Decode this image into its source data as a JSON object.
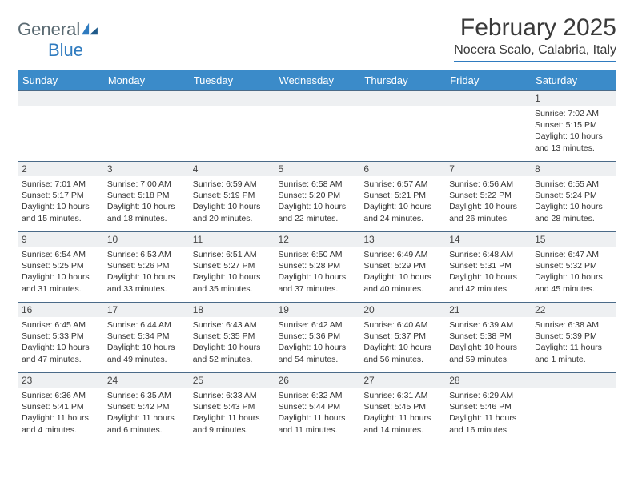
{
  "brand": {
    "part1": "General",
    "part2": "Blue"
  },
  "title": "February 2025",
  "location": "Nocera Scalo, Calabria, Italy",
  "colors": {
    "header_bg": "#3b8bc9",
    "header_text": "#ffffff",
    "rule": "#4a6a88",
    "daynum_bg": "#eef0f2",
    "brand_gray": "#5a6a72",
    "brand_blue": "#2f7bbf"
  },
  "weekdays": [
    "Sunday",
    "Monday",
    "Tuesday",
    "Wednesday",
    "Thursday",
    "Friday",
    "Saturday"
  ],
  "weeks": [
    [
      null,
      null,
      null,
      null,
      null,
      null,
      {
        "n": "1",
        "sr": "Sunrise: 7:02 AM",
        "ss": "Sunset: 5:15 PM",
        "dl": "Daylight: 10 hours and 13 minutes."
      }
    ],
    [
      {
        "n": "2",
        "sr": "Sunrise: 7:01 AM",
        "ss": "Sunset: 5:17 PM",
        "dl": "Daylight: 10 hours and 15 minutes."
      },
      {
        "n": "3",
        "sr": "Sunrise: 7:00 AM",
        "ss": "Sunset: 5:18 PM",
        "dl": "Daylight: 10 hours and 18 minutes."
      },
      {
        "n": "4",
        "sr": "Sunrise: 6:59 AM",
        "ss": "Sunset: 5:19 PM",
        "dl": "Daylight: 10 hours and 20 minutes."
      },
      {
        "n": "5",
        "sr": "Sunrise: 6:58 AM",
        "ss": "Sunset: 5:20 PM",
        "dl": "Daylight: 10 hours and 22 minutes."
      },
      {
        "n": "6",
        "sr": "Sunrise: 6:57 AM",
        "ss": "Sunset: 5:21 PM",
        "dl": "Daylight: 10 hours and 24 minutes."
      },
      {
        "n": "7",
        "sr": "Sunrise: 6:56 AM",
        "ss": "Sunset: 5:22 PM",
        "dl": "Daylight: 10 hours and 26 minutes."
      },
      {
        "n": "8",
        "sr": "Sunrise: 6:55 AM",
        "ss": "Sunset: 5:24 PM",
        "dl": "Daylight: 10 hours and 28 minutes."
      }
    ],
    [
      {
        "n": "9",
        "sr": "Sunrise: 6:54 AM",
        "ss": "Sunset: 5:25 PM",
        "dl": "Daylight: 10 hours and 31 minutes."
      },
      {
        "n": "10",
        "sr": "Sunrise: 6:53 AM",
        "ss": "Sunset: 5:26 PM",
        "dl": "Daylight: 10 hours and 33 minutes."
      },
      {
        "n": "11",
        "sr": "Sunrise: 6:51 AM",
        "ss": "Sunset: 5:27 PM",
        "dl": "Daylight: 10 hours and 35 minutes."
      },
      {
        "n": "12",
        "sr": "Sunrise: 6:50 AM",
        "ss": "Sunset: 5:28 PM",
        "dl": "Daylight: 10 hours and 37 minutes."
      },
      {
        "n": "13",
        "sr": "Sunrise: 6:49 AM",
        "ss": "Sunset: 5:29 PM",
        "dl": "Daylight: 10 hours and 40 minutes."
      },
      {
        "n": "14",
        "sr": "Sunrise: 6:48 AM",
        "ss": "Sunset: 5:31 PM",
        "dl": "Daylight: 10 hours and 42 minutes."
      },
      {
        "n": "15",
        "sr": "Sunrise: 6:47 AM",
        "ss": "Sunset: 5:32 PM",
        "dl": "Daylight: 10 hours and 45 minutes."
      }
    ],
    [
      {
        "n": "16",
        "sr": "Sunrise: 6:45 AM",
        "ss": "Sunset: 5:33 PM",
        "dl": "Daylight: 10 hours and 47 minutes."
      },
      {
        "n": "17",
        "sr": "Sunrise: 6:44 AM",
        "ss": "Sunset: 5:34 PM",
        "dl": "Daylight: 10 hours and 49 minutes."
      },
      {
        "n": "18",
        "sr": "Sunrise: 6:43 AM",
        "ss": "Sunset: 5:35 PM",
        "dl": "Daylight: 10 hours and 52 minutes."
      },
      {
        "n": "19",
        "sr": "Sunrise: 6:42 AM",
        "ss": "Sunset: 5:36 PM",
        "dl": "Daylight: 10 hours and 54 minutes."
      },
      {
        "n": "20",
        "sr": "Sunrise: 6:40 AM",
        "ss": "Sunset: 5:37 PM",
        "dl": "Daylight: 10 hours and 56 minutes."
      },
      {
        "n": "21",
        "sr": "Sunrise: 6:39 AM",
        "ss": "Sunset: 5:38 PM",
        "dl": "Daylight: 10 hours and 59 minutes."
      },
      {
        "n": "22",
        "sr": "Sunrise: 6:38 AM",
        "ss": "Sunset: 5:39 PM",
        "dl": "Daylight: 11 hours and 1 minute."
      }
    ],
    [
      {
        "n": "23",
        "sr": "Sunrise: 6:36 AM",
        "ss": "Sunset: 5:41 PM",
        "dl": "Daylight: 11 hours and 4 minutes."
      },
      {
        "n": "24",
        "sr": "Sunrise: 6:35 AM",
        "ss": "Sunset: 5:42 PM",
        "dl": "Daylight: 11 hours and 6 minutes."
      },
      {
        "n": "25",
        "sr": "Sunrise: 6:33 AM",
        "ss": "Sunset: 5:43 PM",
        "dl": "Daylight: 11 hours and 9 minutes."
      },
      {
        "n": "26",
        "sr": "Sunrise: 6:32 AM",
        "ss": "Sunset: 5:44 PM",
        "dl": "Daylight: 11 hours and 11 minutes."
      },
      {
        "n": "27",
        "sr": "Sunrise: 6:31 AM",
        "ss": "Sunset: 5:45 PM",
        "dl": "Daylight: 11 hours and 14 minutes."
      },
      {
        "n": "28",
        "sr": "Sunrise: 6:29 AM",
        "ss": "Sunset: 5:46 PM",
        "dl": "Daylight: 11 hours and 16 minutes."
      },
      null
    ]
  ]
}
